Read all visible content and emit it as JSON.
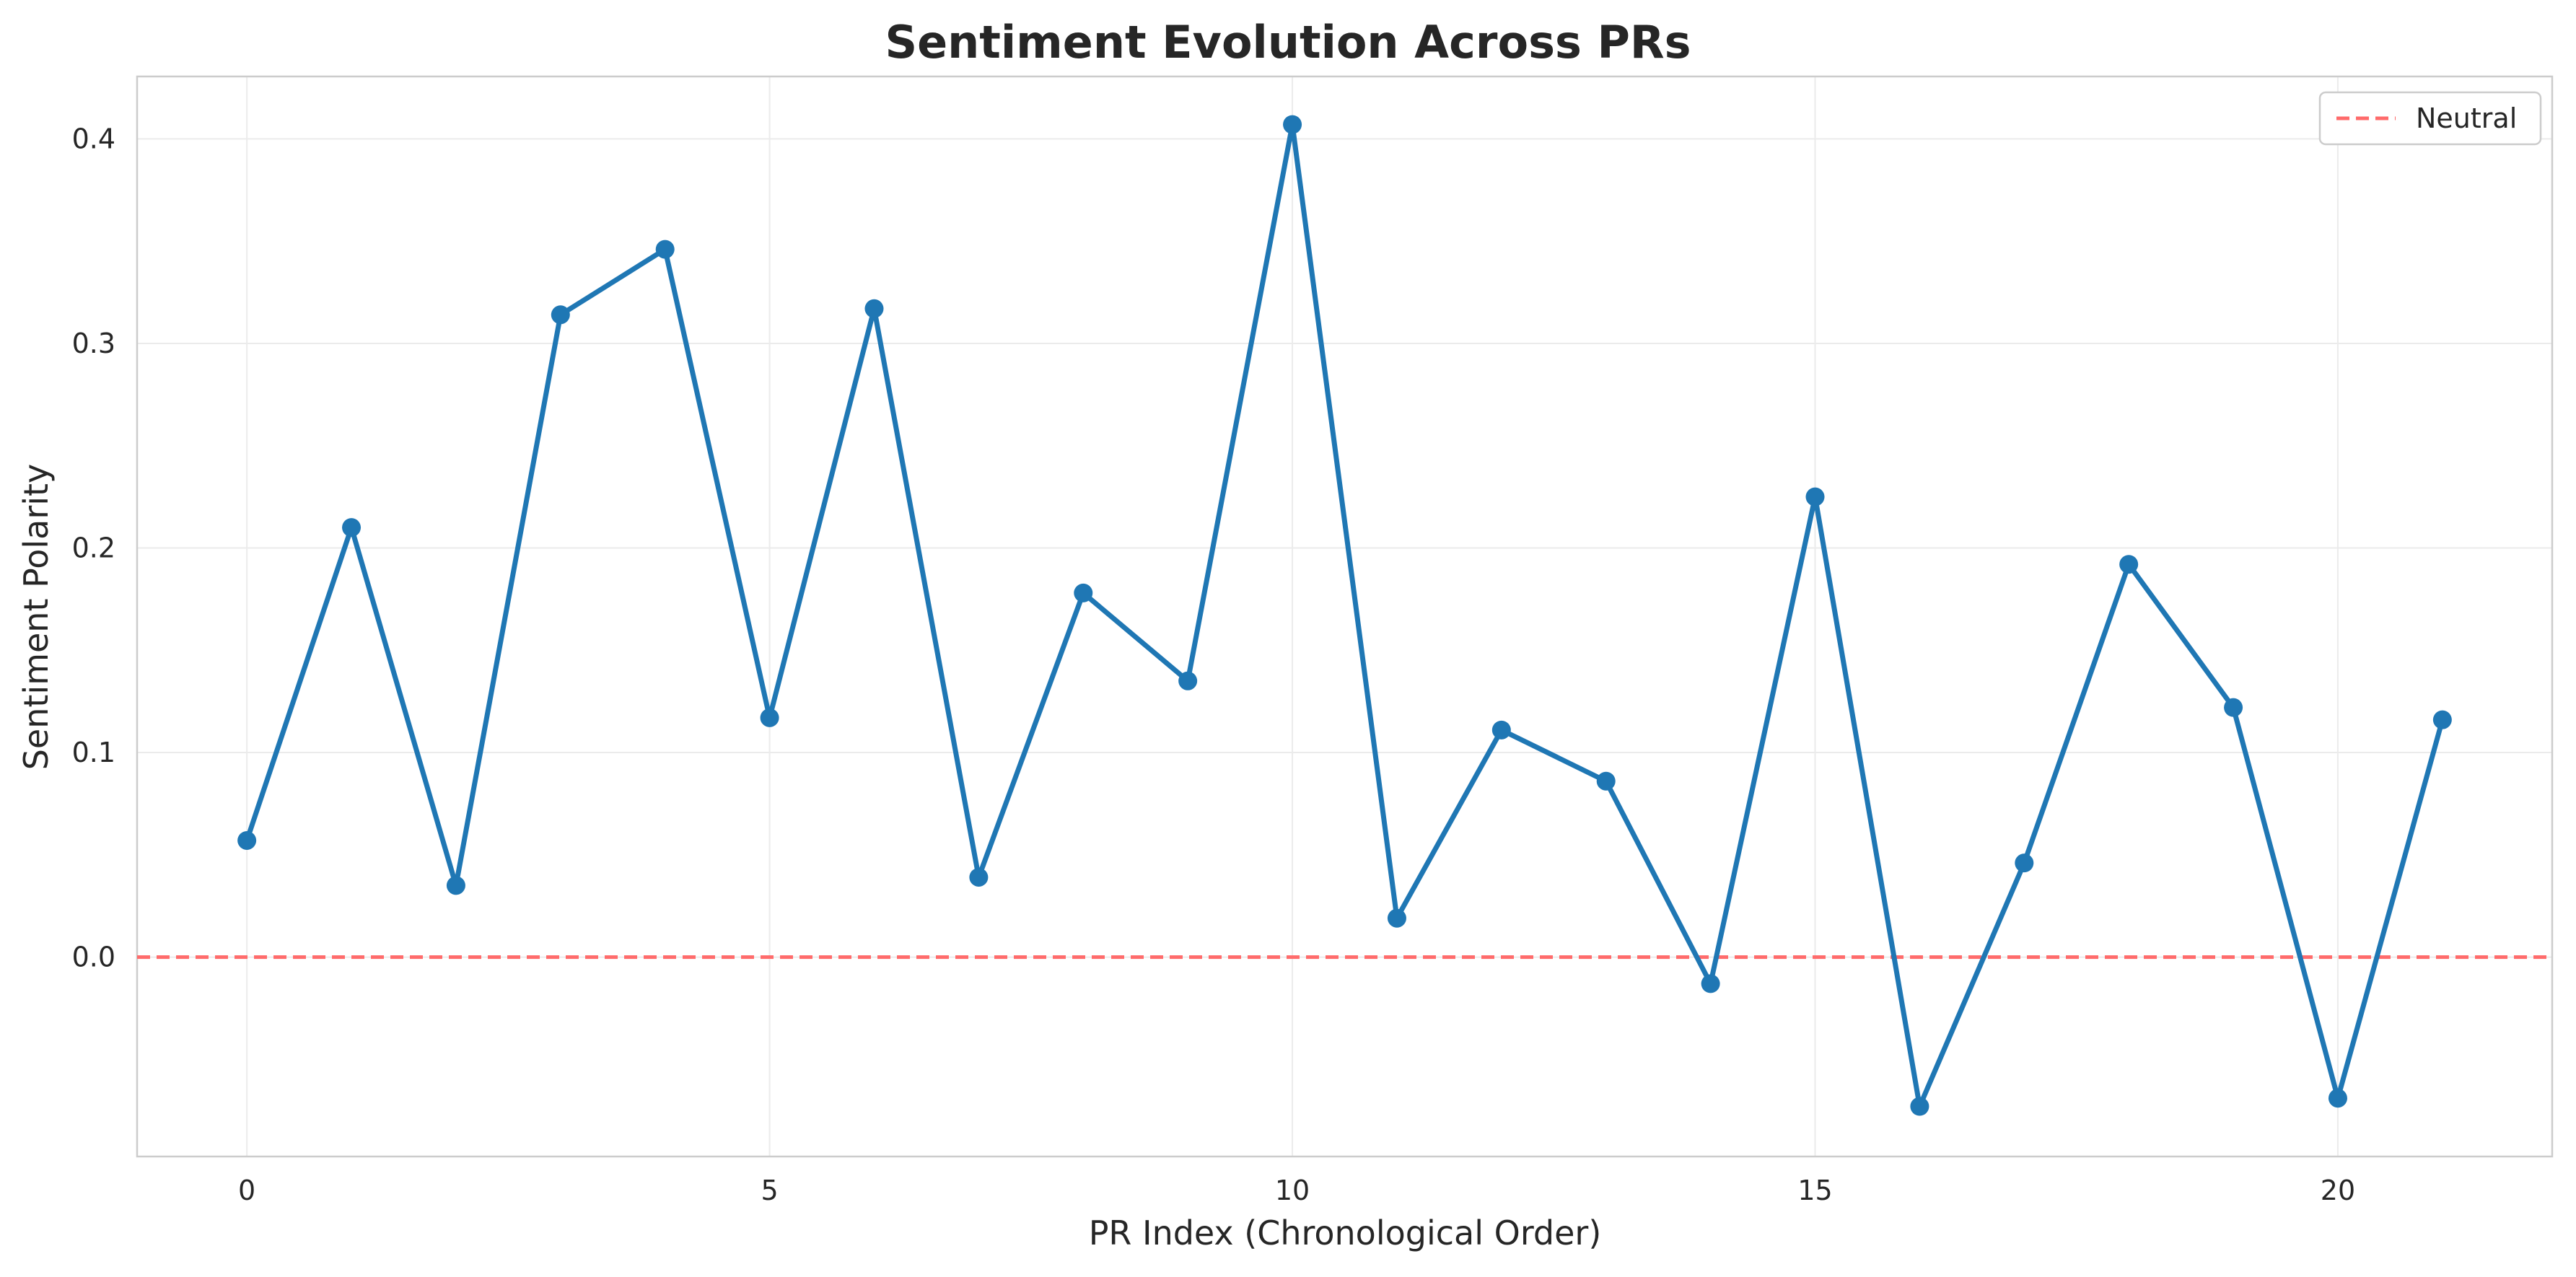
{
  "chart_data": {
    "type": "line",
    "title": "Sentiment Evolution Across PRs",
    "xlabel": "PR Index (Chronological Order)",
    "ylabel": "Sentiment Polarity",
    "xlim": [
      -1.05,
      22.05
    ],
    "ylim": [
      -0.0975,
      0.4305
    ],
    "xticks": [
      0,
      5,
      10,
      15,
      20
    ],
    "yticks": [
      0.0,
      0.1,
      0.2,
      0.3,
      0.4
    ],
    "xtick_labels": [
      "0",
      "5",
      "10",
      "15",
      "20"
    ],
    "ytick_labels": [
      "0.0",
      "0.1",
      "0.2",
      "0.3",
      "0.4"
    ],
    "grid": true,
    "series": [
      {
        "name": "Sentiment",
        "color": "#1f77b4",
        "x": [
          0,
          1,
          2,
          3,
          4,
          5,
          6,
          7,
          8,
          9,
          10,
          11,
          12,
          13,
          14,
          15,
          16,
          17,
          18,
          19,
          20,
          21
        ],
        "values": [
          0.057,
          0.21,
          0.035,
          0.314,
          0.346,
          0.117,
          0.317,
          0.039,
          0.178,
          0.135,
          0.407,
          0.019,
          0.111,
          0.086,
          -0.013,
          0.225,
          -0.073,
          0.046,
          0.192,
          0.122,
          -0.069,
          0.116
        ]
      }
    ],
    "reference_line": {
      "name": "Neutral",
      "y": 0.0,
      "color": "#ff6b6b",
      "style": "dashed"
    },
    "legend": {
      "position": "top-right",
      "entries": [
        "Neutral"
      ]
    }
  }
}
